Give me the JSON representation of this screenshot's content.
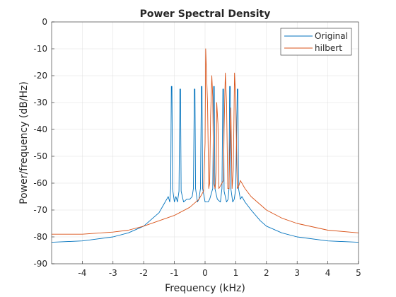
{
  "chart_data": {
    "type": "line",
    "title": "Power Spectral Density",
    "xlabel": "Frequency (kHz)",
    "ylabel": "Power/frequency (dB/Hz)",
    "xlim": [
      -5,
      5
    ],
    "ylim": [
      -90,
      0
    ],
    "xticks": [
      -4,
      -3,
      -2,
      -1,
      0,
      1,
      2,
      3,
      4,
      5
    ],
    "yticks": [
      0,
      -10,
      -20,
      -30,
      -40,
      -50,
      -60,
      -70,
      -80,
      -90
    ],
    "grid": true,
    "legend_position": "top-right",
    "series": [
      {
        "name": "Original",
        "color": "#0072bd",
        "points": [
          [
            -5,
            -82
          ],
          [
            -4,
            -81.5
          ],
          [
            -3,
            -80
          ],
          [
            -2.5,
            -78.5
          ],
          [
            -2,
            -76
          ],
          [
            -1.8,
            -74
          ],
          [
            -1.5,
            -71
          ],
          [
            -1.35,
            -68
          ],
          [
            -1.25,
            -66
          ],
          [
            -1.2,
            -65
          ],
          [
            -1.15,
            -67
          ],
          [
            -1.12,
            -62
          ],
          [
            -1.1,
            -24
          ],
          [
            -1.08,
            -24
          ],
          [
            -1.06,
            -62
          ],
          [
            -1.0,
            -67
          ],
          [
            -0.95,
            -65
          ],
          [
            -0.9,
            -67
          ],
          [
            -0.85,
            -63
          ],
          [
            -0.82,
            -25
          ],
          [
            -0.8,
            -25
          ],
          [
            -0.78,
            -63
          ],
          [
            -0.7,
            -67
          ],
          [
            -0.6,
            -66
          ],
          [
            -0.5,
            -66
          ],
          [
            -0.42,
            -65
          ],
          [
            -0.38,
            -62
          ],
          [
            -0.35,
            -25
          ],
          [
            -0.33,
            -25
          ],
          [
            -0.31,
            -62
          ],
          [
            -0.25,
            -67
          ],
          [
            -0.2,
            -66
          ],
          [
            -0.15,
            -62
          ],
          [
            -0.12,
            -24
          ],
          [
            -0.1,
            -24
          ],
          [
            -0.08,
            -62
          ],
          [
            0,
            -67
          ],
          [
            0.1,
            -67
          ],
          [
            0.15,
            -66
          ],
          [
            0.2,
            -64
          ],
          [
            0.25,
            -62
          ],
          [
            0.28,
            -24
          ],
          [
            0.3,
            -24
          ],
          [
            0.32,
            -62
          ],
          [
            0.4,
            -66
          ],
          [
            0.5,
            -67
          ],
          [
            0.55,
            -62
          ],
          [
            0.58,
            -25
          ],
          [
            0.6,
            -25
          ],
          [
            0.62,
            -63
          ],
          [
            0.7,
            -67
          ],
          [
            0.75,
            -66
          ],
          [
            0.78,
            -62
          ],
          [
            0.8,
            -24
          ],
          [
            0.82,
            -24
          ],
          [
            0.84,
            -62
          ],
          [
            0.9,
            -67
          ],
          [
            0.95,
            -66
          ],
          [
            1.0,
            -62
          ],
          [
            1.05,
            -25
          ],
          [
            1.07,
            -25
          ],
          [
            1.09,
            -62
          ],
          [
            1.15,
            -66
          ],
          [
            1.2,
            -65
          ],
          [
            1.3,
            -67
          ],
          [
            1.5,
            -70
          ],
          [
            1.8,
            -74
          ],
          [
            2,
            -76
          ],
          [
            2.5,
            -78.5
          ],
          [
            3,
            -80
          ],
          [
            4,
            -81.5
          ],
          [
            5,
            -82
          ]
        ]
      },
      {
        "name": "hilbert",
        "color": "#d95319",
        "points": [
          [
            -5,
            -79
          ],
          [
            -4,
            -79
          ],
          [
            -3,
            -78.2
          ],
          [
            -2.5,
            -77.5
          ],
          [
            -2,
            -76
          ],
          [
            -1.5,
            -74
          ],
          [
            -1,
            -72
          ],
          [
            -0.5,
            -69
          ],
          [
            -0.2,
            -66
          ],
          [
            -0.05,
            -63
          ],
          [
            0,
            -45
          ],
          [
            0.02,
            -10
          ],
          [
            0.05,
            -20
          ],
          [
            0.08,
            -30
          ],
          [
            0.12,
            -62
          ],
          [
            0.15,
            -60
          ],
          [
            0.18,
            -35
          ],
          [
            0.22,
            -20
          ],
          [
            0.25,
            -28
          ],
          [
            0.28,
            -60
          ],
          [
            0.33,
            -62
          ],
          [
            0.36,
            -55
          ],
          [
            0.38,
            -30
          ],
          [
            0.42,
            -38
          ],
          [
            0.45,
            -62
          ],
          [
            0.5,
            -61
          ],
          [
            0.55,
            -60
          ],
          [
            0.6,
            -59
          ],
          [
            0.62,
            -40
          ],
          [
            0.66,
            -19
          ],
          [
            0.7,
            -30
          ],
          [
            0.74,
            -62
          ],
          [
            0.78,
            -62
          ],
          [
            0.8,
            -50
          ],
          [
            0.84,
            -32
          ],
          [
            0.88,
            -62
          ],
          [
            0.92,
            -55
          ],
          [
            0.96,
            -19
          ],
          [
            1.0,
            -30
          ],
          [
            1.05,
            -62
          ],
          [
            1.1,
            -61
          ],
          [
            1.15,
            -59
          ],
          [
            1.3,
            -62
          ],
          [
            1.5,
            -65
          ],
          [
            2,
            -70
          ],
          [
            2.5,
            -73
          ],
          [
            3,
            -75
          ],
          [
            4,
            -77.5
          ],
          [
            5,
            -78.5
          ]
        ]
      }
    ]
  }
}
